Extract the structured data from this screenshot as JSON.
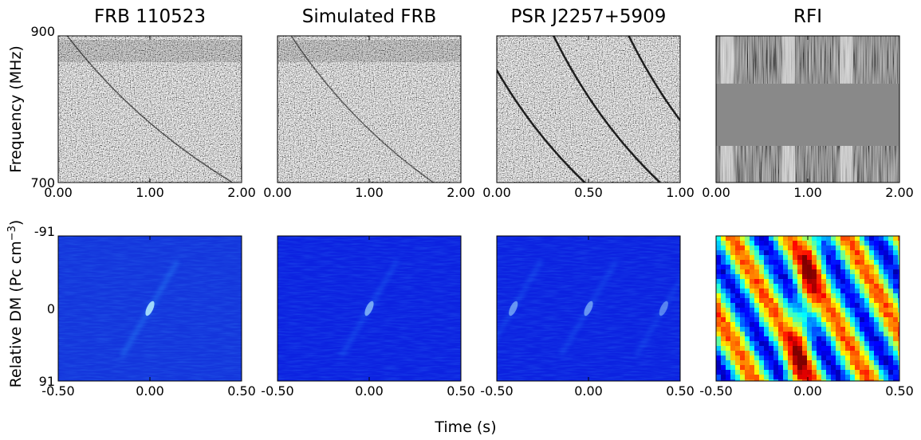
{
  "chart_data": [
    {
      "type": "heatmap",
      "title": "FRB 110523",
      "row": "waterfall",
      "x_ticks": [
        "0.00",
        "1.00",
        "2.00"
      ],
      "xlim": [
        0.0,
        2.0
      ],
      "y_ticks": [
        "900",
        "700"
      ],
      "ylim": [
        700,
        900
      ],
      "ylabel": "Frequency (MHz)",
      "colormap": "grayscale",
      "sweeps": [
        {
          "time_at_900": 0.1,
          "time_at_700": 1.9,
          "width": 1.5,
          "alpha": 0.6
        }
      ],
      "top_band": true
    },
    {
      "type": "heatmap",
      "title": "Simulated FRB",
      "row": "waterfall",
      "x_ticks": [
        "0.00",
        "1.00",
        "2.00"
      ],
      "xlim": [
        0.0,
        2.0
      ],
      "y_ticks": [],
      "ylim": [
        700,
        900
      ],
      "colormap": "grayscale",
      "sweeps": [
        {
          "time_at_900": 0.15,
          "time_at_700": 1.7,
          "width": 1.5,
          "alpha": 0.55
        }
      ],
      "top_band": true
    },
    {
      "type": "heatmap",
      "title": "PSR J2257+5909",
      "row": "waterfall",
      "x_ticks": [
        "0.00",
        "0.50",
        "1.00"
      ],
      "xlim": [
        0.0,
        1.0
      ],
      "y_ticks": [],
      "ylim": [
        700,
        900
      ],
      "colormap": "grayscale",
      "sweeps": [
        {
          "time_at_900": -0.1,
          "time_at_700": 0.48,
          "width": 2.5,
          "alpha": 0.85
        },
        {
          "time_at_900": 0.31,
          "time_at_700": 0.89,
          "width": 2.5,
          "alpha": 0.85
        },
        {
          "time_at_900": 0.72,
          "time_at_700": 1.3,
          "width": 2.5,
          "alpha": 0.85
        }
      ],
      "top_band": false
    },
    {
      "type": "heatmap",
      "title": "RFI",
      "row": "waterfall",
      "x_ticks": [
        "0.00",
        "1.00",
        "2.00"
      ],
      "xlim": [
        0.0,
        2.0
      ],
      "y_ticks": [],
      "ylim": [
        700,
        900
      ],
      "colormap": "grayscale",
      "rfi_bands": [
        {
          "from": 900,
          "to": 835
        },
        {
          "from": 750,
          "to": 700
        }
      ]
    },
    {
      "type": "heatmap",
      "row": "dm_time",
      "x_ticks": [
        "-0.50",
        "0.00",
        "0.50"
      ],
      "xlim": [
        -0.5,
        0.5
      ],
      "y_ticks": [
        "-91",
        "0",
        "91"
      ],
      "ylim": [
        -91,
        91
      ],
      "ylabel": "Relative DM (Pc cm",
      "ylabel_sup": "−3",
      "ylabel_end": ")",
      "colormap": "jet",
      "peaks": [
        {
          "t": 0.0,
          "dm": 0,
          "strength": 1.0
        }
      ]
    },
    {
      "type": "heatmap",
      "row": "dm_time",
      "x_ticks": [
        "-0.50",
        "0.00",
        "0.50"
      ],
      "xlim": [
        -0.5,
        0.5
      ],
      "y_ticks": [],
      "ylim": [
        -91,
        91
      ],
      "colormap": "jet",
      "peaks": [
        {
          "t": 0.0,
          "dm": 0,
          "strength": 0.7
        }
      ]
    },
    {
      "type": "heatmap",
      "row": "dm_time",
      "x_ticks": [
        "-0.50",
        "0.00",
        "0.50"
      ],
      "xlim": [
        -0.5,
        0.5
      ],
      "y_ticks": [],
      "ylim": [
        -91,
        91
      ],
      "colormap": "jet",
      "peaks": [
        {
          "t": -0.41,
          "dm": 0,
          "strength": 0.6
        },
        {
          "t": 0.0,
          "dm": 0,
          "strength": 0.6
        },
        {
          "t": 0.41,
          "dm": 0,
          "strength": 0.5
        }
      ]
    },
    {
      "type": "heatmap",
      "row": "dm_time",
      "x_ticks": [
        "-0.50",
        "0.00",
        "0.50"
      ],
      "xlim": [
        -0.5,
        0.5
      ],
      "y_ticks": [],
      "ylim": [
        -91,
        91
      ],
      "colormap": "jet",
      "rfi_streaks": true
    }
  ],
  "shared_xlabel": "Time (s)",
  "colors": {
    "low": "#0a28e6",
    "high": "#e60000",
    "gray_mid": "#8a8a8a"
  }
}
